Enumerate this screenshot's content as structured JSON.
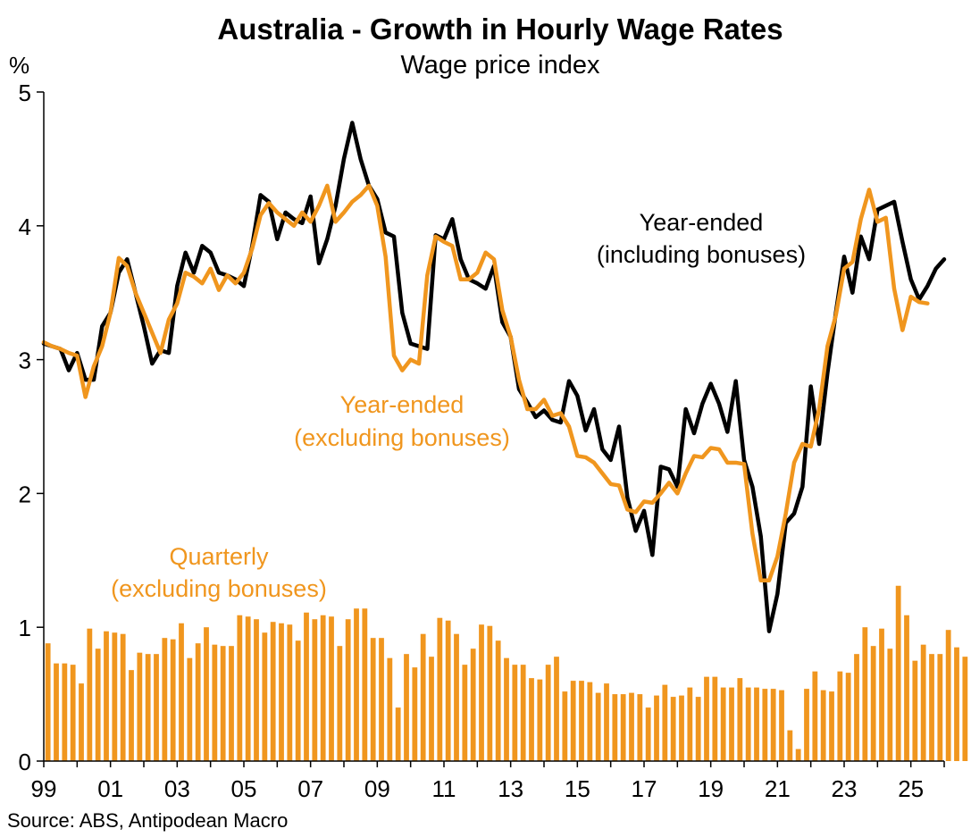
{
  "chart_data": {
    "type": "bar+line",
    "title": "Australia - Growth in Hourly Wage Rates",
    "subtitle": "Wage price index",
    "ylabel": "%",
    "ylim": [
      0,
      5
    ],
    "yticks": [
      "0",
      "1",
      "2",
      "3",
      "4",
      "5"
    ],
    "xlim": [
      1999.0,
      2026.0
    ],
    "xticks": [
      {
        "x": 1999,
        "label": "99"
      },
      {
        "x": 2001,
        "label": "01"
      },
      {
        "x": 2003,
        "label": "03"
      },
      {
        "x": 2005,
        "label": "05"
      },
      {
        "x": 2007,
        "label": "07"
      },
      {
        "x": 2009,
        "label": "09"
      },
      {
        "x": 2011,
        "label": "11"
      },
      {
        "x": 2013,
        "label": "13"
      },
      {
        "x": 2015,
        "label": "15"
      },
      {
        "x": 2017,
        "label": "17"
      },
      {
        "x": 2019,
        "label": "19"
      },
      {
        "x": 2021,
        "label": "21"
      },
      {
        "x": 2023,
        "label": "23"
      },
      {
        "x": 2025,
        "label": "25"
      }
    ],
    "grid": false,
    "source": "Source: ABS, Antipodean Macro",
    "colors": {
      "incl": "#000000",
      "excl": "#f0961e",
      "bars": "#f0961e"
    },
    "annotations": {
      "incl": [
        "Year-ended",
        "(including bonuses)"
      ],
      "excl": [
        "Year-ended",
        "(excluding bonuses)"
      ],
      "quarterly": [
        "Quarterly",
        "(excluding bonuses)"
      ]
    },
    "series": [
      {
        "key": "quarterly",
        "kind": "bar",
        "x_start": 1999.0,
        "step": 0.25,
        "values": [
          0.88,
          0.73,
          0.73,
          0.72,
          0.58,
          0.99,
          0.84,
          0.97,
          0.96,
          0.95,
          0.68,
          0.81,
          0.8,
          0.8,
          0.92,
          0.91,
          1.03,
          0.77,
          0.88,
          1.0,
          0.87,
          0.86,
          0.86,
          1.09,
          1.08,
          1.06,
          0.96,
          1.04,
          1.03,
          1.02,
          0.9,
          1.11,
          1.06,
          1.09,
          1.08,
          0.86,
          1.06,
          1.14,
          1.14,
          0.92,
          0.92,
          0.77,
          0.4,
          0.8,
          0.7,
          0.95,
          0.78,
          1.07,
          1.05,
          0.95,
          0.72,
          0.84,
          1.02,
          1.01,
          0.9,
          0.77,
          0.72,
          0.72,
          0.62,
          0.61,
          0.72,
          0.78,
          0.52,
          0.6,
          0.6,
          0.59,
          0.51,
          0.58,
          0.5,
          0.5,
          0.51,
          0.5,
          0.4,
          0.49,
          0.57,
          0.48,
          0.49,
          0.55,
          0.48,
          0.63,
          0.63,
          0.55,
          0.55,
          0.62,
          0.55,
          0.55,
          0.54,
          0.54,
          0.53,
          0.23,
          0.09,
          0.54,
          0.67,
          0.53,
          0.52,
          0.67,
          0.66,
          0.8,
          1.0,
          0.86,
          0.99,
          0.84,
          1.31,
          1.09,
          0.75,
          0.87,
          0.8,
          0.8,
          0.98,
          0.85,
          0.78
        ]
      },
      {
        "key": "incl",
        "kind": "line",
        "x_start": 1999.0,
        "step": 0.25,
        "values": [
          3.12,
          3.1,
          3.08,
          2.92,
          3.05,
          2.85,
          2.85,
          3.25,
          3.35,
          3.65,
          3.75,
          3.5,
          3.25,
          2.97,
          3.07,
          3.05,
          3.55,
          3.8,
          3.65,
          3.85,
          3.8,
          3.65,
          3.63,
          3.6,
          3.55,
          3.85,
          4.23,
          4.18,
          3.9,
          4.1,
          4.05,
          4.02,
          4.22,
          3.72,
          3.9,
          4.15,
          4.5,
          4.77,
          4.5,
          4.3,
          4.2,
          3.95,
          3.92,
          3.35,
          3.12,
          3.1,
          3.08,
          3.93,
          3.9,
          4.05,
          3.75,
          3.6,
          3.57,
          3.53,
          3.7,
          3.28,
          3.17,
          2.78,
          2.68,
          2.57,
          2.62,
          2.55,
          2.53,
          2.84,
          2.73,
          2.47,
          2.63,
          2.33,
          2.25,
          2.5,
          1.97,
          1.72,
          1.87,
          1.54,
          2.2,
          2.18,
          2.05,
          2.63,
          2.45,
          2.67,
          2.82,
          2.67,
          2.46,
          2.84,
          2.25,
          2.05,
          1.68,
          0.97,
          1.25,
          1.78,
          1.85,
          2.05,
          2.8,
          2.37,
          2.9,
          3.35,
          3.77,
          3.5,
          3.92,
          3.75,
          4.12,
          4.15,
          4.18,
          3.88,
          3.6,
          3.45,
          3.55,
          3.68,
          3.75
        ]
      },
      {
        "key": "excl",
        "kind": "line",
        "x_start": 1999.0,
        "step": 0.25,
        "values": [
          3.13,
          3.1,
          3.08,
          3.05,
          3.03,
          2.72,
          2.95,
          3.1,
          3.35,
          3.76,
          3.7,
          3.5,
          3.35,
          3.2,
          3.05,
          3.3,
          3.42,
          3.65,
          3.62,
          3.57,
          3.68,
          3.52,
          3.63,
          3.57,
          3.65,
          3.83,
          4.08,
          4.17,
          4.1,
          4.05,
          4.0,
          4.1,
          4.03,
          4.15,
          4.3,
          4.03,
          4.1,
          4.18,
          4.23,
          4.3,
          4.15,
          3.77,
          3.03,
          2.92,
          3.0,
          2.97,
          3.63,
          3.92,
          3.88,
          3.85,
          3.6,
          3.6,
          3.65,
          3.8,
          3.75,
          3.37,
          3.17,
          2.85,
          2.63,
          2.63,
          2.7,
          2.58,
          2.6,
          2.5,
          2.28,
          2.27,
          2.23,
          2.15,
          2.07,
          2.06,
          1.88,
          1.86,
          1.94,
          1.93,
          2.0,
          2.08,
          2.0,
          2.15,
          2.28,
          2.27,
          2.34,
          2.33,
          2.23,
          2.23,
          2.22,
          1.7,
          1.35,
          1.35,
          1.53,
          1.85,
          2.23,
          2.37,
          2.35,
          2.63,
          3.1,
          3.33,
          3.68,
          3.73,
          4.05,
          4.27,
          4.03,
          4.06,
          3.53,
          3.22,
          3.47,
          3.43,
          3.42
        ]
      }
    ]
  }
}
